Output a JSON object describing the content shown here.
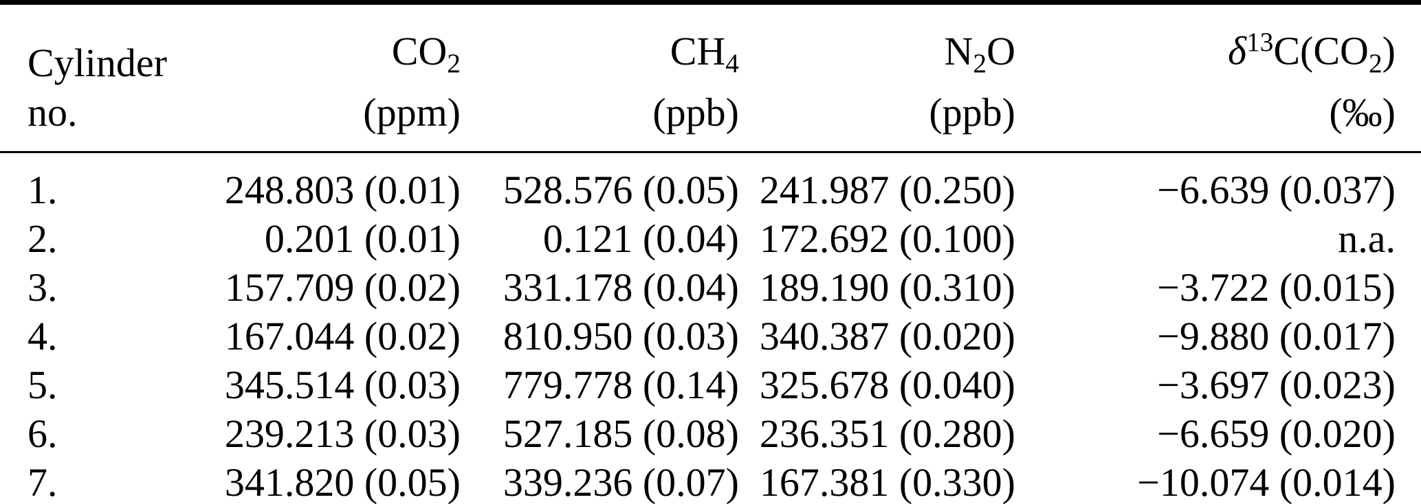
{
  "table": {
    "header": {
      "cylinder": {
        "line1": "Cylinder",
        "line2": "no."
      },
      "co2": {
        "base": "CO",
        "sub": "2",
        "unit": "(ppm)"
      },
      "ch4": {
        "base": "CH",
        "sub": "4",
        "unit": "(ppb)"
      },
      "n2o": {
        "pre": "N",
        "sub": "2",
        "post": "O",
        "unit": "(ppb)"
      },
      "d13c": {
        "delta": "δ",
        "sup": "13",
        "mid": "C(CO",
        "sub": "2",
        "end": ")",
        "unit": "(‰)"
      }
    },
    "rows": [
      {
        "no": "1.",
        "co2": "248.803 (0.01)",
        "ch4": "528.576 (0.05)",
        "n2o": "241.987 (0.250)",
        "d13c": "−6.639 (0.037)"
      },
      {
        "no": "2.",
        "co2": "0.201 (0.01)",
        "ch4": "0.121 (0.04)",
        "n2o": "172.692 (0.100)",
        "d13c": "n.a."
      },
      {
        "no": "3.",
        "co2": "157.709 (0.02)",
        "ch4": "331.178 (0.04)",
        "n2o": "189.190 (0.310)",
        "d13c": "−3.722 (0.015)"
      },
      {
        "no": "4.",
        "co2": "167.044 (0.02)",
        "ch4": "810.950 (0.03)",
        "n2o": "340.387 (0.020)",
        "d13c": "−9.880 (0.017)"
      },
      {
        "no": "5.",
        "co2": "345.514 (0.03)",
        "ch4": "779.778 (0.14)",
        "n2o": "325.678 (0.040)",
        "d13c": "−3.697 (0.023)"
      },
      {
        "no": "6.",
        "co2": "239.213 (0.03)",
        "ch4": "527.185 (0.08)",
        "n2o": "236.351 (0.280)",
        "d13c": "−6.659 (0.020)"
      },
      {
        "no": "7.",
        "co2": "341.820 (0.05)",
        "ch4": "339.236 (0.07)",
        "n2o": "167.381 (0.330)",
        "d13c": "−10.074 (0.014)"
      }
    ],
    "colors": {
      "text": "#000000",
      "background": "#ffffff",
      "rule": "#000000"
    }
  }
}
